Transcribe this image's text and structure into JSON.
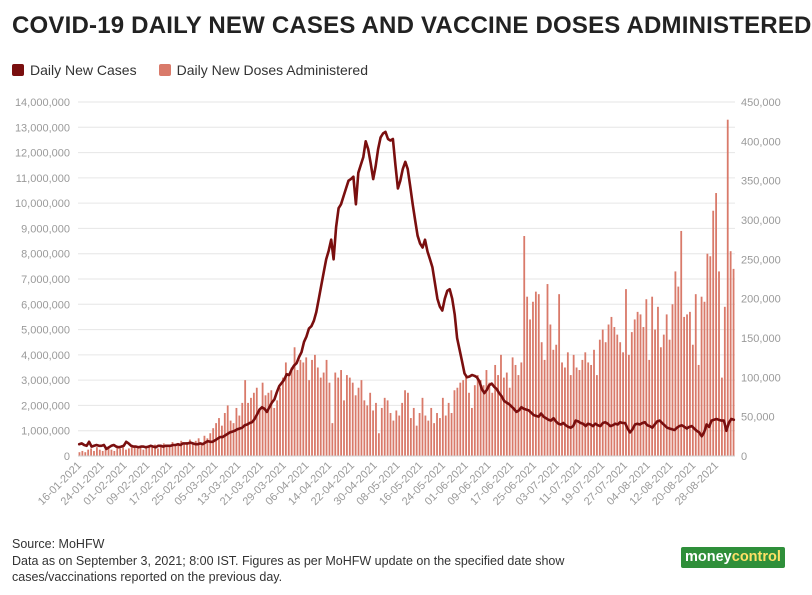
{
  "title": "COVID-19 DAILY NEW CASES AND VACCINE DOSES ADMINISTERED",
  "legend": {
    "cases": "Daily New Cases",
    "doses": "Daily New Doses Administered"
  },
  "colors": {
    "cases": "#7a0f0f",
    "doses": "#d97a6a",
    "grid": "#e6e6e6",
    "axis_text": "#9a9a9a"
  },
  "footer": {
    "source": "Source: MoHFW",
    "note_line1": "Data as on September 3, 2021; 8:00 IST. Figures as per MoHFW update on the specified date show",
    "note_line2": "cases/vaccinations reported on the previous day."
  },
  "brand": {
    "part1": "money",
    "part2": "control"
  },
  "chart_data": {
    "type": "bar+line",
    "title": "COVID-19 DAILY NEW CASES AND VACCINE DOSES ADMINISTERED",
    "left_axis": {
      "series": "Daily New Doses Administered",
      "range": [
        0,
        14000000
      ],
      "ticks": [
        "0",
        "1,000,000",
        "2,000,000",
        "3,000,000",
        "4,000,000",
        "5,000,000",
        "6,000,000",
        "7,000,000",
        "8,000,000",
        "9,000,000",
        "10,000,000",
        "11,000,000",
        "12,000,000",
        "13,000,000",
        "14,000,000"
      ]
    },
    "right_axis": {
      "series": "Daily New Cases",
      "range": [
        0,
        450000
      ],
      "ticks": [
        "0",
        "50,000",
        "100,000",
        "150,000",
        "200,000",
        "250,000",
        "300,000",
        "350,000",
        "400,000",
        "450,000"
      ]
    },
    "x_tick_labels": [
      "16-01-2021",
      "24-01-2021",
      "01-02-2021",
      "09-02-2021",
      "17-02-2021",
      "25-02-2021",
      "05-03-2021",
      "13-03-2021",
      "21-03-2021",
      "29-03-2021",
      "06-04-2021",
      "14-04-2021",
      "22-04-2021",
      "30-04-2021",
      "08-05-2021",
      "16-05-2021",
      "24-05-2021",
      "01-06-2021",
      "09-06-2021",
      "17-06-2021",
      "25-06-2021",
      "03-07-2021",
      "11-07-2021",
      "19-07-2021",
      "27-07-2021",
      "04-08-2021",
      "12-08-2021",
      "20-08-2021",
      "28-08-2021"
    ],
    "series": [
      {
        "name": "Daily New Doses Administered",
        "type": "bar",
        "axis": "left",
        "values": [
          150000,
          200000,
          150000,
          250000,
          300000,
          200000,
          350000,
          250000,
          200000,
          300000,
          350000,
          250000,
          200000,
          400000,
          300000,
          350000,
          250000,
          300000,
          350000,
          400000,
          300000,
          350000,
          250000,
          300000,
          400000,
          350000,
          450000,
          300000,
          400000,
          500000,
          350000,
          450000,
          550000,
          400000,
          500000,
          600000,
          450000,
          550000,
          650000,
          500000,
          600000,
          700000,
          500000,
          800000,
          700000,
          900000,
          1100000,
          1300000,
          1500000,
          1200000,
          1700000,
          2000000,
          1400000,
          1300000,
          1900000,
          1600000,
          2100000,
          3000000,
          2100000,
          2300000,
          2500000,
          2700000,
          1800000,
          2900000,
          2400000,
          2500000,
          2600000,
          1900000,
          2200000,
          2700000,
          3100000,
          3700000,
          3200000,
          3500000,
          4300000,
          3400000,
          3800000,
          3700000,
          3900000,
          3000000,
          3800000,
          4000000,
          3500000,
          3100000,
          3300000,
          3800000,
          2900000,
          1300000,
          3300000,
          3100000,
          3400000,
          2200000,
          3200000,
          3100000,
          2900000,
          2400000,
          2700000,
          3000000,
          2200000,
          2000000,
          2500000,
          1800000,
          2100000,
          900000,
          1900000,
          2300000,
          2200000,
          1700000,
          1400000,
          1800000,
          1600000,
          2100000,
          2600000,
          2500000,
          1500000,
          1900000,
          1200000,
          1700000,
          2300000,
          1600000,
          1400000,
          1900000,
          1300000,
          1700000,
          1500000,
          2300000,
          1600000,
          2100000,
          1700000,
          2600000,
          2700000,
          2900000,
          3000000,
          3200000,
          2500000,
          1900000,
          2800000,
          3200000,
          3000000,
          2800000,
          3400000,
          2900000,
          2500000,
          3600000,
          3200000,
          4000000,
          3100000,
          3300000,
          2700000,
          3900000,
          3600000,
          3200000,
          3700000,
          8700000,
          6300000,
          5400000,
          6100000,
          6500000,
          6400000,
          4500000,
          3800000,
          6800000,
          5200000,
          4200000,
          4400000,
          6400000,
          3700000,
          3500000,
          4100000,
          3200000,
          4000000,
          3500000,
          3400000,
          3800000,
          4100000,
          3700000,
          3600000,
          4200000,
          3200000,
          4600000,
          5000000,
          4500000,
          5200000,
          5500000,
          5100000,
          4800000,
          4500000,
          4100000,
          6600000,
          4000000,
          4900000,
          5400000,
          5700000,
          5600000,
          5100000,
          6200000,
          3800000,
          6300000,
          5000000,
          5900000,
          4300000,
          4800000,
          5600000,
          4600000,
          6000000,
          7300000,
          6700000,
          8900000,
          5500000,
          5600000,
          5700000,
          4400000,
          6400000,
          3600000,
          6300000,
          6100000,
          8000000,
          7900000,
          9700000,
          10400000,
          7300000,
          3100000,
          5900000,
          13300000,
          8100000,
          7400000
        ]
      },
      {
        "name": "Daily New Cases",
        "type": "line",
        "axis": "right",
        "values": [
          15000,
          16000,
          14000,
          13000,
          18000,
          12000,
          13000,
          14000,
          13000,
          13000,
          14000,
          9000,
          11000,
          13000,
          14000,
          12000,
          11000,
          12000,
          13000,
          18000,
          16000,
          13000,
          12000,
          12000,
          11000,
          12000,
          12000,
          11000,
          12000,
          13000,
          12000,
          11000,
          13000,
          13000,
          12000,
          13000,
          13000,
          13000,
          14000,
          14000,
          15000,
          14000,
          16000,
          16000,
          16000,
          17000,
          16000,
          15000,
          15000,
          16000,
          15000,
          17000,
          19000,
          18000,
          18000,
          20000,
          22000,
          24000,
          24000,
          26000,
          28000,
          30000,
          31000,
          32000,
          34000,
          35000,
          36000,
          39000,
          40000,
          42000,
          43000,
          47000,
          53000,
          59000,
          62000,
          60000,
          56000,
          62000,
          68000,
          72000,
          81000,
          89000,
          93000,
          97000,
          104000,
          103000,
          110000,
          115000,
          118000,
          126000,
          132000,
          145000,
          152000,
          162000,
          165000,
          172000,
          183000,
          200000,
          217000,
          234000,
          250000,
          261000,
          275000,
          250000,
          291000,
          315000,
          320000,
          330000,
          340000,
          350000,
          352000,
          355000,
          320000,
          360000,
          370000,
          380000,
          400000,
          390000,
          372000,
          352000,
          368000,
          390000,
          405000,
          410000,
          412000,
          403000,
          401000,
          403000,
          370000,
          340000,
          350000,
          365000,
          374000,
          365000,
          343000,
          320000,
          300000,
          280000,
          270000,
          265000,
          275000,
          260000,
          250000,
          240000,
          220000,
          200000,
          190000,
          185000,
          200000,
          210000,
          212000,
          200000,
          180000,
          150000,
          135000,
          120000,
          105000,
          100000,
          101000,
          103000,
          102000,
          100000,
          95000,
          85000,
          80000,
          84000,
          90000,
          92000,
          88000,
          85000,
          80000,
          76000,
          70000,
          68000,
          66000,
          63000,
          60000,
          56000,
          58000,
          62000,
          60000,
          59000,
          58000,
          55000,
          52000,
          51000,
          50000,
          54000,
          50000,
          48000,
          46000,
          45000,
          48000,
          44000,
          41000,
          40000,
          42000,
          39000,
          37000,
          36000,
          38000,
          45000,
          44000,
          42000,
          41000,
          38000,
          41000,
          40000,
          38000,
          41000,
          39000,
          38000,
          42000,
          43000,
          41000,
          38000,
          39000,
          41000,
          40000,
          43000,
          42000,
          42000,
          35000,
          30000,
          34000,
          40000,
          41000,
          40000,
          42000,
          43000,
          39000,
          38000,
          36000,
          40000,
          44000,
          45000,
          42000,
          39000,
          36000,
          35000,
          34000,
          33000,
          36000,
          38000,
          39000,
          37000,
          35000,
          37000,
          38000,
          35000,
          32000,
          30000,
          25000,
          30000,
          40000,
          37000,
          45000,
          46000,
          47000,
          46000,
          45000,
          45000,
          32000,
          42000,
          47000,
          46000
        ]
      }
    ]
  }
}
